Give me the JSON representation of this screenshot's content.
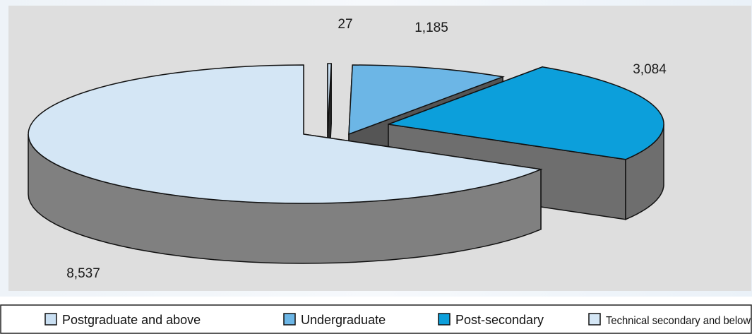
{
  "chart_data": {
    "type": "pie",
    "title": "",
    "style": "3d-exploded-pie",
    "categories": [
      "Postgraduate and above",
      "Undergraduate",
      "Post-secondary",
      "Technical secondary and below"
    ],
    "values": [
      27,
      1185,
      3084,
      8537
    ],
    "value_labels": [
      "27",
      "1,185",
      "3,084",
      "8,537"
    ],
    "colors": [
      "#c9dff2",
      "#6cb6e6",
      "#0c9fdb",
      "#d4e6f5"
    ],
    "side_colors": [
      "#2a2a2a",
      "#555555",
      "#6e6e6e",
      "#808080"
    ],
    "legend": {
      "position": "bottom",
      "items": [
        {
          "label": "Postgraduate and above",
          "color": "#c9dff2"
        },
        {
          "label": "Undergraduate",
          "color": "#6cb6e6"
        },
        {
          "label": "Post-secondary",
          "color": "#0c9fdb"
        },
        {
          "label": "Technical secondary and below",
          "color": "#d4e6f5"
        }
      ]
    }
  }
}
